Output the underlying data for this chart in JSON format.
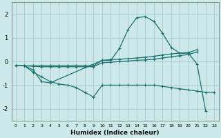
{
  "xlabel": "Humidex (Indice chaleur)",
  "xlim": [
    -0.5,
    23.5
  ],
  "ylim": [
    -2.5,
    2.5
  ],
  "xticks": [
    0,
    1,
    2,
    3,
    4,
    5,
    6,
    7,
    8,
    9,
    10,
    11,
    12,
    13,
    14,
    15,
    16,
    17,
    18,
    19,
    20,
    21,
    22,
    23
  ],
  "yticks": [
    -2,
    -1,
    0,
    1,
    2
  ],
  "bg_color": "#cce8e8",
  "grid_color": "#aacece",
  "line_color": "#1a7070",
  "lines": [
    {
      "x": [
        0,
        1,
        2,
        3,
        4,
        5,
        6,
        7,
        8,
        9,
        10,
        11,
        12,
        13,
        14,
        15,
        16,
        17,
        18,
        19,
        20,
        21
      ],
      "y": [
        -0.18,
        -0.18,
        -0.18,
        -0.18,
        -0.18,
        -0.18,
        -0.18,
        -0.18,
        -0.18,
        -0.18,
        0.05,
        0.08,
        0.1,
        0.12,
        0.15,
        0.18,
        0.22,
        0.28,
        0.32,
        0.36,
        0.38,
        0.5
      ]
    },
    {
      "x": [
        0,
        1,
        2,
        3,
        4,
        5,
        6,
        7,
        8,
        9,
        10,
        11,
        12,
        13,
        14,
        15,
        16,
        17,
        18,
        19,
        20,
        21
      ],
      "y": [
        -0.18,
        -0.18,
        -0.2,
        -0.22,
        -0.22,
        -0.22,
        -0.22,
        -0.22,
        -0.22,
        -0.22,
        -0.05,
        -0.03,
        0.0,
        0.02,
        0.05,
        0.07,
        0.1,
        0.15,
        0.2,
        0.25,
        0.3,
        0.4
      ]
    },
    {
      "x": [
        0,
        1,
        2,
        3,
        4,
        10,
        11,
        12,
        13,
        14,
        15,
        16,
        17,
        18,
        19,
        20,
        21,
        22
      ],
      "y": [
        -0.18,
        -0.18,
        -0.35,
        -0.85,
        -0.9,
        0.05,
        0.05,
        0.55,
        1.35,
        1.85,
        1.9,
        1.7,
        1.2,
        0.6,
        0.35,
        0.35,
        -0.1,
        -2.1
      ]
    },
    {
      "x": [
        0,
        1,
        2,
        3,
        4,
        5,
        6,
        7,
        8,
        9,
        10,
        11,
        12,
        13,
        14,
        15,
        16,
        17,
        18,
        19,
        20,
        21,
        22,
        23
      ],
      "y": [
        -0.18,
        -0.18,
        -0.45,
        -0.65,
        -0.85,
        -0.95,
        -1.0,
        -1.1,
        -1.3,
        -1.5,
        -1.0,
        -1.0,
        -1.0,
        -1.0,
        -1.0,
        -1.0,
        -1.0,
        -1.05,
        -1.1,
        -1.15,
        -1.2,
        -1.25,
        -1.3,
        -1.3
      ]
    }
  ]
}
